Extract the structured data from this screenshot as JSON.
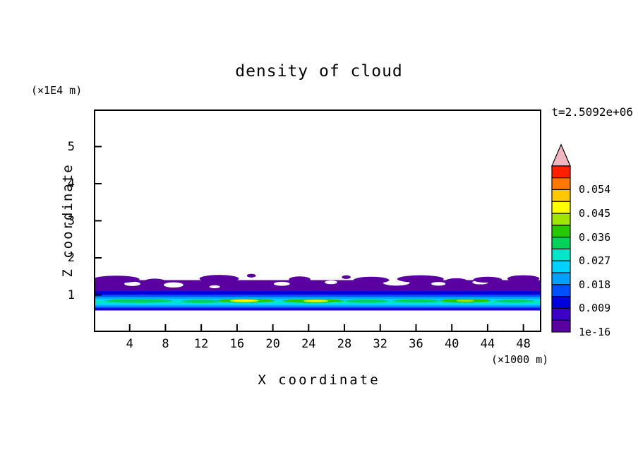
{
  "chart_data": {
    "type": "filled_contour",
    "title": "density of cloud",
    "time_label": "t=2.5092e+06",
    "xlabel": "X coordinate",
    "x_unit": "(×1000 m)",
    "zlabel": "Z coordinate",
    "z_unit": "(×1E4 m)",
    "xlim": [
      0,
      50
    ],
    "zlim": [
      0,
      6
    ],
    "x_ticks": [
      4,
      8,
      12,
      16,
      20,
      24,
      28,
      32,
      36,
      40,
      44,
      48
    ],
    "z_ticks": [
      1,
      2,
      3,
      4,
      5
    ],
    "grid": false,
    "background": "#ffffff",
    "colorbar": {
      "labels_top_to_bottom": [
        "0.054",
        "0.045",
        "0.036",
        "0.027",
        "0.018",
        "0.009",
        "1e-16"
      ],
      "level_step": 0.0045,
      "palette_bottom_to_top": [
        "#5a00a0",
        "#3c00c8",
        "#0000dc",
        "#0050ff",
        "#00a0ff",
        "#00d2ff",
        "#00e6c8",
        "#00d25a",
        "#28c800",
        "#a0e600",
        "#ffff00",
        "#ffc800",
        "#ff7800",
        "#ff1e00"
      ],
      "overflow_arrow_color": "#f2b6c0"
    },
    "cloud_layers": [
      {
        "z_top": 1.4,
        "z_bottom": 0.58,
        "level": 0
      },
      {
        "z_top": 1.1,
        "z_bottom": 0.6,
        "level": 2
      },
      {
        "z_top": 1.01,
        "z_bottom": 0.64,
        "level": 3
      },
      {
        "z_top": 0.95,
        "z_bottom": 0.68,
        "level": 4
      },
      {
        "z_top": 0.9,
        "z_bottom": 0.72,
        "level": 5
      },
      {
        "z_top": 0.86,
        "z_bottom": 0.76,
        "level": 6
      }
    ],
    "cloud_gaps": [
      {
        "x": 4.3,
        "z": 1.3,
        "rx": 0.9,
        "rz": 0.06
      },
      {
        "x": 8.9,
        "z": 1.27,
        "rx": 1.1,
        "rz": 0.07
      },
      {
        "x": 13.5,
        "z": 1.22,
        "rx": 0.6,
        "rz": 0.04
      },
      {
        "x": 21.0,
        "z": 1.3,
        "rx": 0.9,
        "rz": 0.055
      },
      {
        "x": 26.5,
        "z": 1.34,
        "rx": 0.7,
        "rz": 0.05
      },
      {
        "x": 33.8,
        "z": 1.33,
        "rx": 1.5,
        "rz": 0.08
      },
      {
        "x": 38.5,
        "z": 1.3,
        "rx": 0.8,
        "rz": 0.05
      },
      {
        "x": 43.2,
        "z": 1.34,
        "rx": 0.9,
        "rz": 0.055
      }
    ],
    "cloud_patches": [
      {
        "x": 2.5,
        "z": 1.42,
        "rx": 2.6,
        "rz": 0.1,
        "level": 0
      },
      {
        "x": 6.8,
        "z": 1.36,
        "rx": 1.2,
        "rz": 0.08,
        "level": 0
      },
      {
        "x": 14.0,
        "z": 1.44,
        "rx": 2.2,
        "rz": 0.1,
        "level": 0
      },
      {
        "x": 17.6,
        "z": 1.52,
        "rx": 0.5,
        "rz": 0.05,
        "level": 0
      },
      {
        "x": 23.0,
        "z": 1.42,
        "rx": 1.2,
        "rz": 0.08,
        "level": 0
      },
      {
        "x": 28.2,
        "z": 1.48,
        "rx": 0.5,
        "rz": 0.05,
        "level": 0
      },
      {
        "x": 31.0,
        "z": 1.4,
        "rx": 2.0,
        "rz": 0.09,
        "level": 0
      },
      {
        "x": 36.5,
        "z": 1.43,
        "rx": 2.6,
        "rz": 0.1,
        "level": 0
      },
      {
        "x": 40.5,
        "z": 1.38,
        "rx": 1.2,
        "rz": 0.07,
        "level": 0
      },
      {
        "x": 44.0,
        "z": 1.41,
        "rx": 1.6,
        "rz": 0.08,
        "level": 0
      },
      {
        "x": 48.0,
        "z": 1.44,
        "rx": 1.8,
        "rz": 0.09,
        "level": 0
      },
      {
        "x": 5.0,
        "z": 0.84,
        "rx": 3.8,
        "rz": 0.05,
        "level": 7
      },
      {
        "x": 12.0,
        "z": 0.83,
        "rx": 2.2,
        "rz": 0.045,
        "level": 7
      },
      {
        "x": 17.0,
        "z": 0.845,
        "rx": 3.2,
        "rz": 0.05,
        "level": 8
      },
      {
        "x": 16.8,
        "z": 0.845,
        "rx": 1.6,
        "rz": 0.035,
        "level": 10
      },
      {
        "x": 24.5,
        "z": 0.84,
        "rx": 3.4,
        "rz": 0.05,
        "level": 8
      },
      {
        "x": 24.8,
        "z": 0.84,
        "rx": 1.4,
        "rz": 0.03,
        "level": 10
      },
      {
        "x": 30.5,
        "z": 0.835,
        "rx": 2.4,
        "rz": 0.045,
        "level": 7
      },
      {
        "x": 36.0,
        "z": 0.84,
        "rx": 2.6,
        "rz": 0.045,
        "level": 7
      },
      {
        "x": 41.5,
        "z": 0.845,
        "rx": 2.8,
        "rz": 0.05,
        "level": 8
      },
      {
        "x": 41.5,
        "z": 0.845,
        "rx": 1.0,
        "rz": 0.03,
        "level": 9
      },
      {
        "x": 47.0,
        "z": 0.835,
        "rx": 2.2,
        "rz": 0.04,
        "level": 7
      }
    ],
    "summary": "Thin stratified cloud deck spanning all x between z≈0.6 and z≈1.5 (×1E4 m); densest streaks (≈0.03–0.045) near z≈0.85, capped by a patchy low-density (1e-16–0.009) violet layer up to z≈1.5."
  }
}
